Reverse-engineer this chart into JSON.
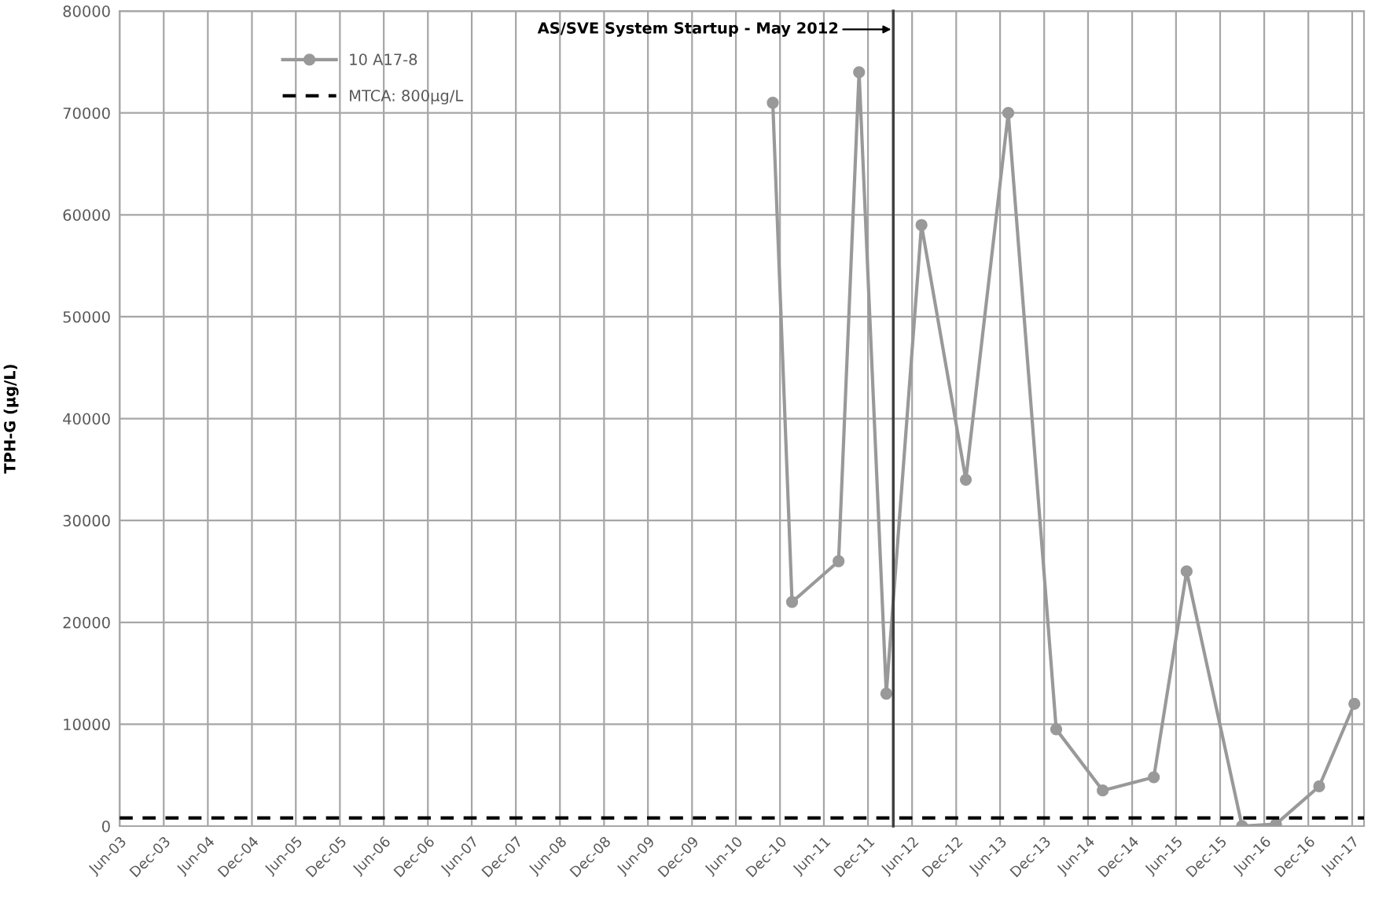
{
  "chart_data": {
    "type": "line",
    "ylabel": "TPH-G (µg/L)",
    "x": [
      "2010-11-01",
      "2011-01-20",
      "2011-08-01",
      "2011-10-25",
      "2012-02-15",
      "2012-07-10",
      "2013-01-10",
      "2013-07-05",
      "2014-01-20",
      "2014-08-01",
      "2015-03-01",
      "2015-07-15",
      "2016-03-01",
      "2016-07-20",
      "2017-01-15",
      "2017-06-10"
    ],
    "series": [
      {
        "name": "10 A17-8",
        "color": "#999999",
        "marker": "circle",
        "line_style": "solid",
        "values": [
          71000,
          22000,
          26000,
          74000,
          13000,
          59000,
          34000,
          70000,
          9500,
          3500,
          4800,
          25000,
          0,
          200,
          3900,
          12000
        ]
      }
    ],
    "ref_lines": [
      {
        "axis": "y",
        "value": 800,
        "label": "MTCA: 800µg/L",
        "color": "#000000",
        "line_style": "dashed"
      },
      {
        "axis": "x",
        "value": "2012-03-15",
        "label": "AS/SVE System Startup - May 2012",
        "color": "#404040",
        "line_style": "solid"
      }
    ],
    "ylim": [
      0,
      80000
    ],
    "yticks": [
      0,
      10000,
      20000,
      30000,
      40000,
      50000,
      60000,
      70000,
      80000
    ],
    "xlim": [
      "2003-06-01",
      "2017-07-20"
    ],
    "xticks": [
      {
        "value": "2003-06-01",
        "label": "Jun-03"
      },
      {
        "value": "2003-12-01",
        "label": "Dec-03"
      },
      {
        "value": "2004-06-01",
        "label": "Jun-04"
      },
      {
        "value": "2004-12-01",
        "label": "Dec-04"
      },
      {
        "value": "2005-06-01",
        "label": "Jun-05"
      },
      {
        "value": "2005-12-01",
        "label": "Dec-05"
      },
      {
        "value": "2006-06-01",
        "label": "Jun-06"
      },
      {
        "value": "2006-12-01",
        "label": "Dec-06"
      },
      {
        "value": "2007-06-01",
        "label": "Jun-07"
      },
      {
        "value": "2007-12-01",
        "label": "Dec-07"
      },
      {
        "value": "2008-06-01",
        "label": "Jun-08"
      },
      {
        "value": "2008-12-01",
        "label": "Dec-08"
      },
      {
        "value": "2009-06-01",
        "label": "Jun-09"
      },
      {
        "value": "2009-12-01",
        "label": "Dec-09"
      },
      {
        "value": "2010-06-01",
        "label": "Jun-10"
      },
      {
        "value": "2010-12-01",
        "label": "Dec-10"
      },
      {
        "value": "2011-06-01",
        "label": "Jun-11"
      },
      {
        "value": "2011-12-01",
        "label": "Dec-11"
      },
      {
        "value": "2012-06-01",
        "label": "Jun-12"
      },
      {
        "value": "2012-12-01",
        "label": "Dec-12"
      },
      {
        "value": "2013-06-01",
        "label": "Jun-13"
      },
      {
        "value": "2013-12-01",
        "label": "Dec-13"
      },
      {
        "value": "2014-06-01",
        "label": "Jun-14"
      },
      {
        "value": "2014-12-01",
        "label": "Dec-14"
      },
      {
        "value": "2015-06-01",
        "label": "Jun-15"
      },
      {
        "value": "2015-12-01",
        "label": "Dec-15"
      },
      {
        "value": "2016-06-01",
        "label": "Jun-16"
      },
      {
        "value": "2016-12-01",
        "label": "Dec-16"
      },
      {
        "value": "2017-06-01",
        "label": "Jun-17"
      }
    ],
    "grid": true,
    "legend": "top left"
  }
}
